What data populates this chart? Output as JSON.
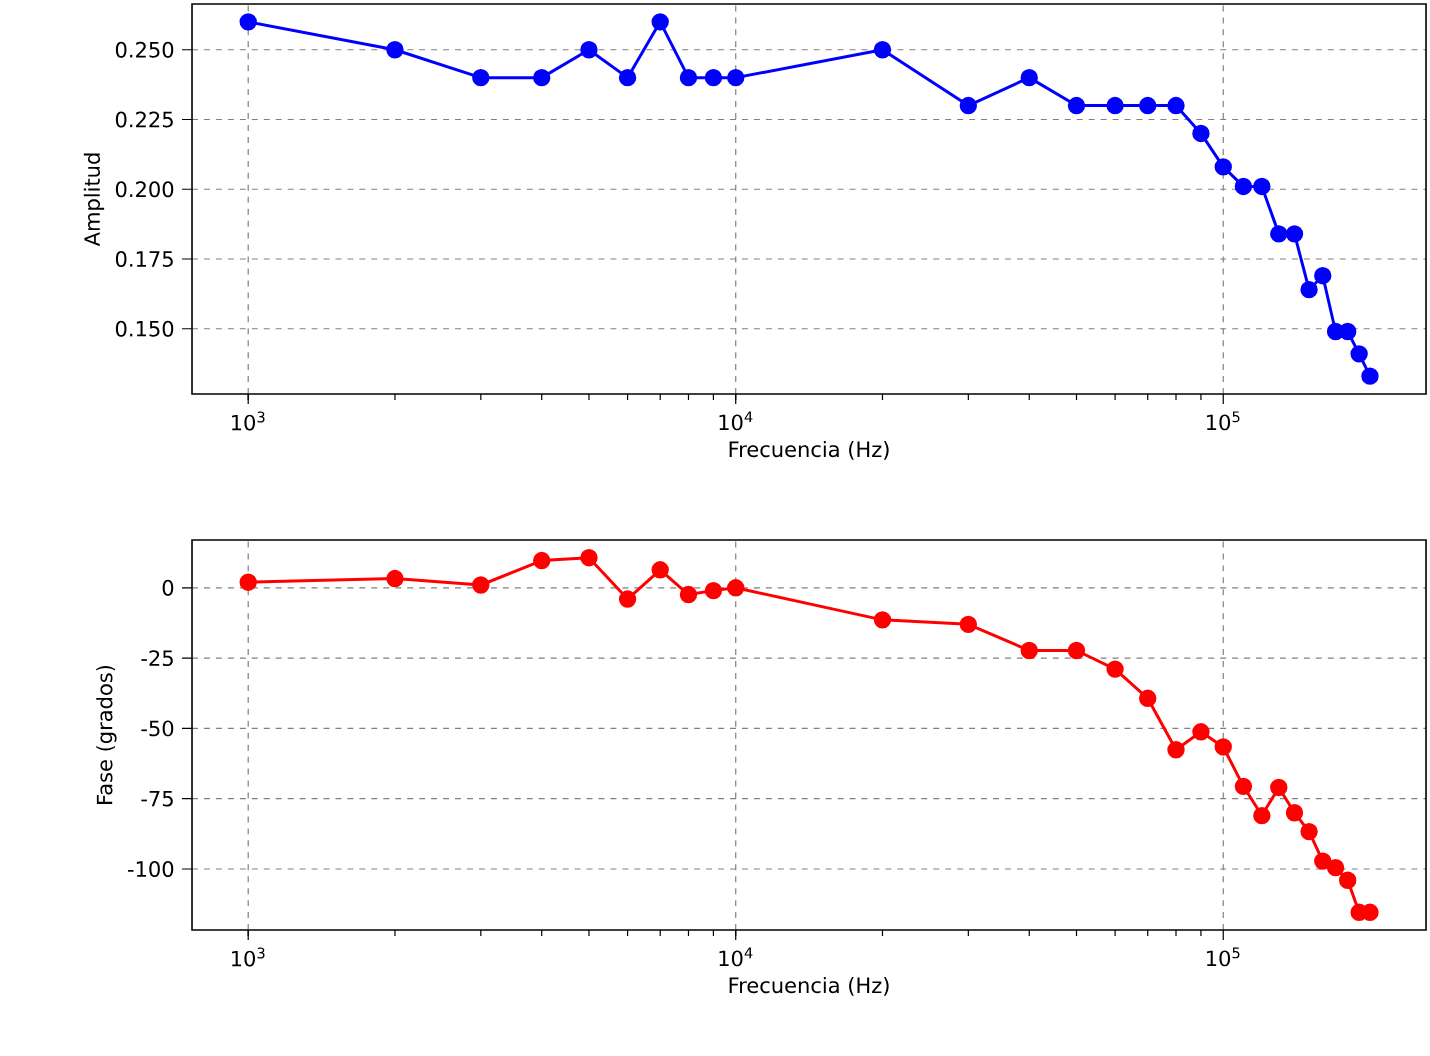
{
  "chart_data": [
    {
      "type": "line",
      "xlabel": "Frecuencia (Hz)",
      "ylabel": "Amplitud",
      "log": "x",
      "grid": true,
      "marker": "circle",
      "line_style": "solid",
      "x": [
        1000,
        2000,
        3000,
        4000,
        5000,
        6000,
        7000,
        8000,
        9000,
        10000,
        20000,
        30000,
        40000,
        50000,
        60000,
        70000,
        80000,
        90000,
        100000,
        110000,
        120000,
        130000,
        140000,
        150000,
        160000,
        170000,
        180000,
        190000,
        200000
      ],
      "series": [
        {
          "color": "#0000ff",
          "values": [
            0.26,
            0.25,
            0.24,
            0.24,
            0.25,
            0.24,
            0.26,
            0.24,
            0.24,
            0.24,
            0.25,
            0.23,
            0.24,
            0.23,
            0.23,
            0.23,
            0.23,
            0.22,
            0.208,
            0.201,
            0.201,
            0.184,
            0.184,
            0.164,
            0.169,
            0.149,
            0.149,
            0.141,
            0.133
          ]
        }
      ],
      "xlim": [
        767,
        260600
      ],
      "ylim": [
        0.1266,
        0.2664
      ],
      "xticks": [
        {
          "value": 1000,
          "label": "10$^{3}$"
        },
        {
          "value": 10000,
          "label": "10$^{4}$"
        },
        {
          "value": 100000,
          "label": "10$^{5}$"
        }
      ],
      "yticks": [
        {
          "value": 0.15,
          "label": "0.150"
        },
        {
          "value": 0.175,
          "label": "0.175"
        },
        {
          "value": 0.2,
          "label": "0.200"
        },
        {
          "value": 0.225,
          "label": "0.225"
        },
        {
          "value": 0.25,
          "label": "0.250"
        }
      ]
    },
    {
      "type": "line",
      "xlabel": "Frecuencia (Hz)",
      "ylabel": "Fase (grados)",
      "log": "x",
      "grid": true,
      "marker": "circle",
      "line_style": "solid",
      "x": [
        1000,
        2000,
        3000,
        4000,
        5000,
        6000,
        7000,
        8000,
        9000,
        10000,
        20000,
        30000,
        40000,
        50000,
        60000,
        70000,
        80000,
        90000,
        100000,
        110000,
        120000,
        130000,
        140000,
        150000,
        160000,
        170000,
        180000,
        190000,
        200000
      ],
      "series": [
        {
          "color": "#ff0000",
          "values": [
            2,
            3.3,
            1,
            9.7,
            10.7,
            -4,
            6.4,
            -2.4,
            -1,
            0,
            -11.4,
            -13,
            -22.3,
            -22.3,
            -28.9,
            -39.3,
            -57.6,
            -51.2,
            -56.6,
            -70.6,
            -81,
            -71,
            -80,
            -86.7,
            -97.2,
            -99.5,
            -104,
            -115.4,
            -115.4
          ]
        }
      ],
      "xlim": [
        767,
        260600
      ],
      "ylim": [
        -121.7,
        17
      ],
      "xticks": [
        {
          "value": 1000,
          "label": "10$^{3}$"
        },
        {
          "value": 10000,
          "label": "10$^{4}$"
        },
        {
          "value": 100000,
          "label": "10$^{5}$"
        }
      ],
      "yticks": [
        -100,
        -75,
        -50,
        -25,
        0
      ]
    }
  ]
}
